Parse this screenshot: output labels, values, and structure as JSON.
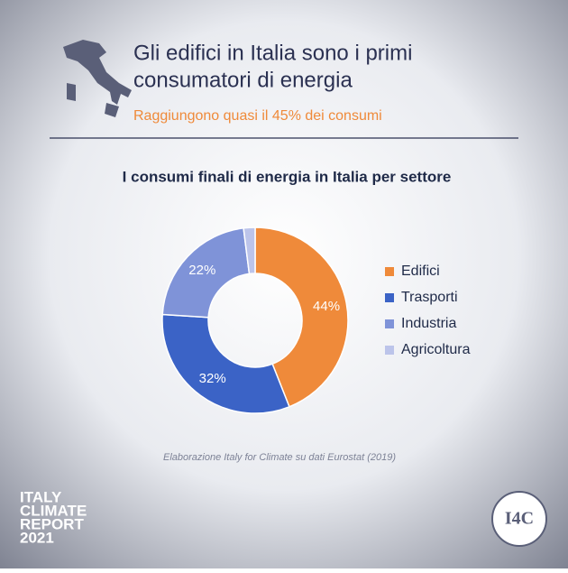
{
  "header": {
    "title_lines": [
      "Gli edifici in Italia sono i primi",
      "consumatori di energia"
    ],
    "subtitle": "Raggiungono quasi il 45% dei consumi"
  },
  "chart_data": {
    "type": "pie",
    "title": "I consumi finali di energia in Italia per settore",
    "categories": [
      "Edifici",
      "Trasporti",
      "Industria",
      "Agricoltura"
    ],
    "values": [
      44,
      32,
      22,
      2
    ],
    "value_labels": [
      "44%",
      "32%",
      "22%",
      null
    ],
    "colors": [
      "#ef8a3a",
      "#3b63c6",
      "#7f93d8",
      "#bcc4ea"
    ],
    "donut": true,
    "legend": "right"
  },
  "source": "Elaborazione Italy for Climate su dati Eurostat (2019)",
  "footer": {
    "report_lines": [
      "ITALY",
      "CLIMATE",
      "REPORT",
      "2021"
    ]
  },
  "logo": "I4C"
}
